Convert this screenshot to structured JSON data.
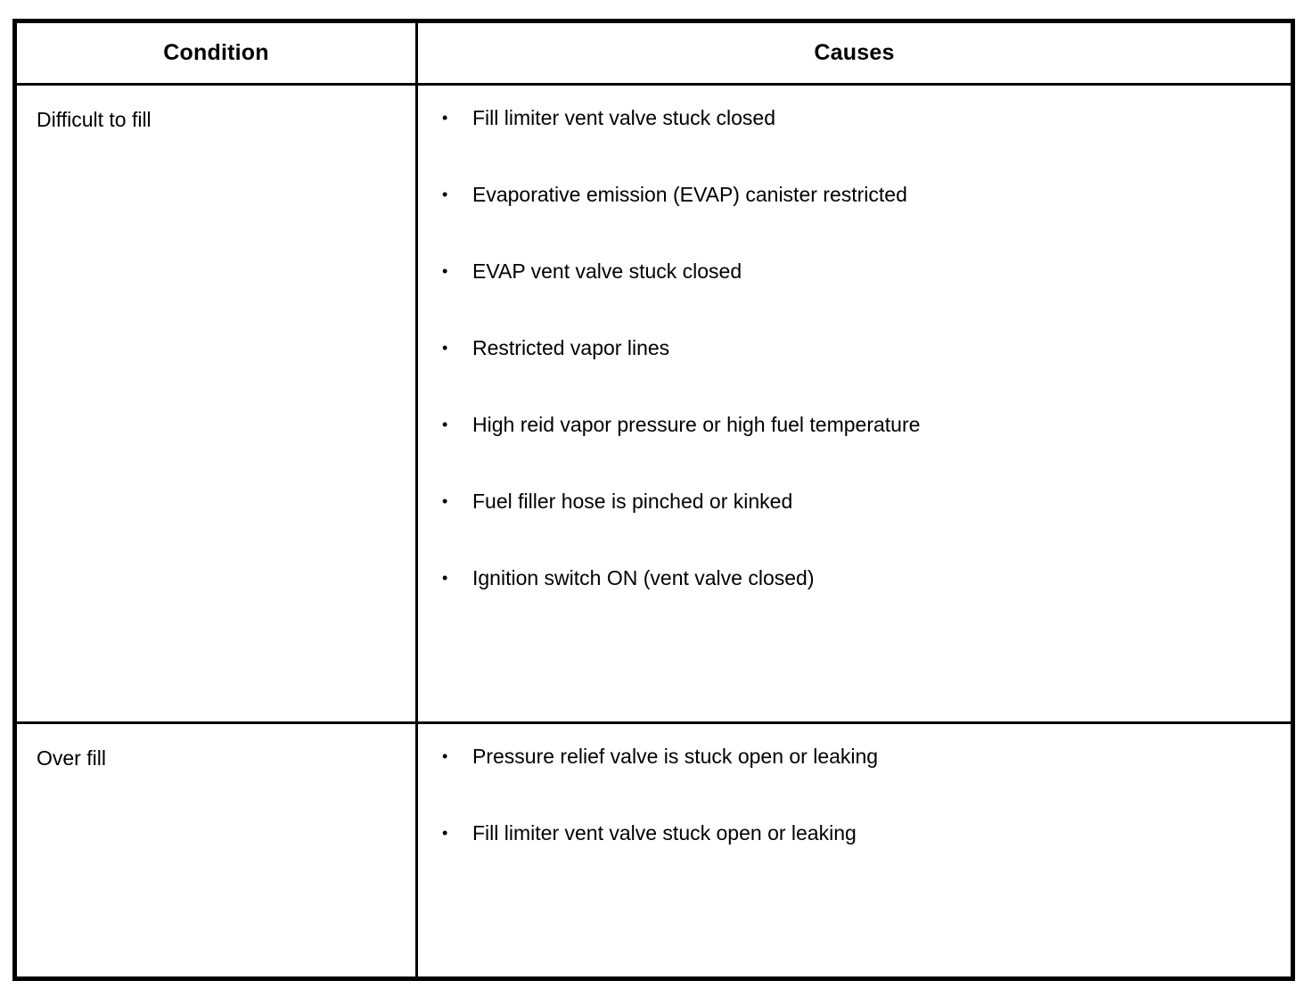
{
  "table": {
    "bullet_glyph": "•",
    "headers": {
      "condition": "Condition",
      "causes": "Causes"
    },
    "rows": [
      {
        "condition": "Difficult to fill",
        "causes": [
          "Fill limiter vent valve stuck closed",
          "Evaporative emission (EVAP) canister restricted",
          "EVAP vent valve stuck closed",
          "Restricted vapor lines",
          "High reid vapor pressure or high fuel temperature",
          "Fuel filler hose is pinched or kinked",
          "Ignition switch ON (vent valve closed)"
        ]
      },
      {
        "condition": "Over fill",
        "causes": [
          "Pressure relief valve is stuck open or leaking",
          "Fill limiter vent valve stuck open or leaking"
        ]
      }
    ]
  }
}
